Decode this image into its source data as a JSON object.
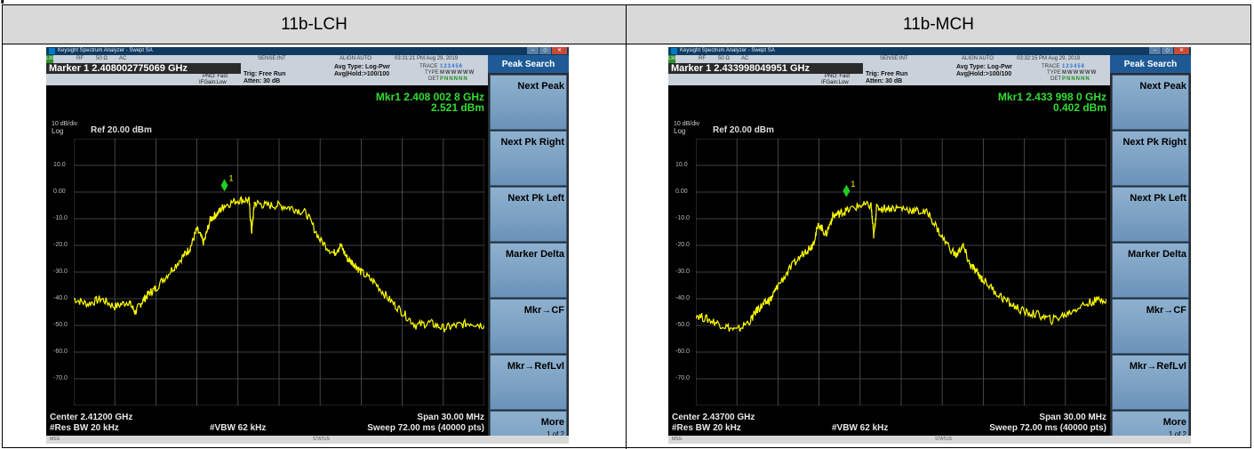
{
  "page": {
    "title_fragment": "p",
    "columns": [
      "11b-LCH",
      "11b-MCH"
    ]
  },
  "analyzers": [
    {
      "title": "Keysight Spectrum Analyzer - Swept SA",
      "lxi": "LXI",
      "rf": "RF",
      "ohm": "50 Ω",
      "ac": "AC",
      "sense": "SENSE:INT",
      "align": "ALIGN AUTO",
      "datetime": "03:31:21 PM Aug 29, 2019",
      "marker_title": "Marker 1 2.408002775069 GHz",
      "pno": "PNO: Fast",
      "ifgain": "IFGain:Low",
      "trig": "Trig: Free Run",
      "atten": "Atten: 30 dB",
      "avg_type": "Avg Type: Log-Pwr",
      "avg_hold": "Avg|Hold:>100/100",
      "trace_label": "TRACE",
      "type_label": "TYPE",
      "det_label": "DET",
      "trace_nums": "123456",
      "type_vals": "MWWWWW",
      "det_vals": "PNNNNN",
      "mkr_readout": "Mkr1 2.408 002 8 GHz",
      "mkr_level": "2.521 dBm",
      "scale_div": "10 dB/div",
      "scale_log": "Log",
      "ref_level": "Ref 20.00 dBm",
      "marker_label": "1",
      "y_labels": [
        "10.0",
        "0.00",
        "-10.0",
        "-20.0",
        "-30.0",
        "-40.0",
        "-50.0",
        "-60.0",
        "-70.0"
      ],
      "center": "Center 2.41200 GHz",
      "res_bw": "#Res BW 20 kHz",
      "vbw": "#VBW 62 kHz",
      "span": "Span 30.00 MHz",
      "sweep": "Sweep  72.00 ms (40000 pts)",
      "msg": "MSG",
      "status": "STATUS",
      "softkeys_title": "Peak Search",
      "softkeys": [
        {
          "label": "Next Peak",
          "sub": ""
        },
        {
          "label": "Next Pk Right",
          "sub": ""
        },
        {
          "label": "Next Pk Left",
          "sub": ""
        },
        {
          "label": "Marker Delta",
          "sub": ""
        },
        {
          "label": "Mkr→CF",
          "sub": ""
        },
        {
          "label": "Mkr→RefLvl",
          "sub": ""
        },
        {
          "label": "More",
          "sub": "1 of 2"
        }
      ],
      "trace": {
        "color": "#ffff00",
        "x_mhz": [
          -15,
          -14,
          -13,
          -12,
          -11,
          -10.5,
          -10,
          -9.5,
          -9,
          -8,
          -7,
          -6.5,
          -6,
          -5.5,
          -5,
          -4.5,
          -4,
          -3,
          -2.2,
          -2,
          -1.8,
          -1,
          0,
          1,
          2,
          3,
          4,
          4.5,
          5,
          5.5,
          6,
          7,
          8,
          9,
          10,
          11,
          12,
          13,
          14,
          15
        ],
        "y_dbm": [
          -40,
          -42,
          -40,
          -43,
          -41,
          -45,
          -41,
          -38,
          -36,
          -30,
          -24,
          -21,
          -14,
          -19,
          -10,
          -8,
          -5,
          -3,
          -3,
          -15,
          -4,
          -5,
          -5,
          -6,
          -8,
          -18,
          -23,
          -20,
          -25,
          -27,
          -30,
          -34,
          -40,
          -45,
          -50,
          -49,
          -51,
          -50,
          -49,
          -50
        ],
        "marker_mhz": -3.99,
        "marker_dbm": 2.521
      }
    },
    {
      "title": "Keysight Spectrum Analyzer - Swept SA",
      "lxi": "LXI",
      "rf": "RF",
      "ohm": "50 Ω",
      "ac": "AC",
      "sense": "SENSE:INT",
      "align": "ALIGN AUTO",
      "datetime": "03:32:15 PM Aug 29, 2019",
      "marker_title": "Marker 1 2.433998049951 GHz",
      "pno": "PNO: Fast",
      "ifgain": "IFGain:Low",
      "trig": "Trig: Free Run",
      "atten": "Atten: 30 dB",
      "avg_type": "Avg Type: Log-Pwr",
      "avg_hold": "Avg|Hold:>100/100",
      "trace_label": "TRACE",
      "type_label": "TYPE",
      "det_label": "DET",
      "trace_nums": "123456",
      "type_vals": "MWWWWW",
      "det_vals": "PNNNNN",
      "mkr_readout": "Mkr1 2.433 998 0 GHz",
      "mkr_level": "0.402 dBm",
      "scale_div": "10 dB/div",
      "scale_log": "Log",
      "ref_level": "Ref 20.00 dBm",
      "marker_label": "1",
      "y_labels": [
        "10.0",
        "0.00",
        "-10.0",
        "-20.0",
        "-30.0",
        "-40.0",
        "-50.0",
        "-60.0",
        "-70.0"
      ],
      "center": "Center 2.43700 GHz",
      "res_bw": "#Res BW 20 kHz",
      "vbw": "#VBW 62 kHz",
      "span": "Span 30.00 MHz",
      "sweep": "Sweep  72.00 ms (40000 pts)",
      "msg": "MSG",
      "status": "STATUS",
      "softkeys_title": "Peak Search",
      "softkeys": [
        {
          "label": "Next Peak",
          "sub": ""
        },
        {
          "label": "Next Pk Right",
          "sub": ""
        },
        {
          "label": "Next Pk Left",
          "sub": ""
        },
        {
          "label": "Marker Delta",
          "sub": ""
        },
        {
          "label": "Mkr→CF",
          "sub": ""
        },
        {
          "label": "Mkr→RefLvl",
          "sub": ""
        },
        {
          "label": "More",
          "sub": "1 of 2"
        }
      ],
      "trace": {
        "color": "#ffff00",
        "x_mhz": [
          -15,
          -14,
          -13,
          -12,
          -11,
          -10.5,
          -10,
          -9.5,
          -9,
          -8,
          -7,
          -6.5,
          -6,
          -5.5,
          -5,
          -4.5,
          -4,
          -3,
          -2.2,
          -2,
          -1.8,
          -1,
          0,
          1,
          2,
          3,
          4,
          4.5,
          5,
          5.5,
          6,
          7,
          8,
          9,
          10,
          11,
          12,
          13,
          14,
          15
        ],
        "y_dbm": [
          -46,
          -48,
          -50,
          -52,
          -48,
          -44,
          -42,
          -40,
          -35,
          -28,
          -22,
          -20,
          -12,
          -16,
          -9,
          -8,
          -7,
          -5,
          -5,
          -17,
          -6,
          -6,
          -6,
          -7,
          -8,
          -17,
          -24,
          -20,
          -27,
          -30,
          -33,
          -38,
          -42,
          -45,
          -46,
          -48,
          -46,
          -43,
          -41,
          -40
        ],
        "marker_mhz": -4.0,
        "marker_dbm": 0.402
      }
    }
  ]
}
